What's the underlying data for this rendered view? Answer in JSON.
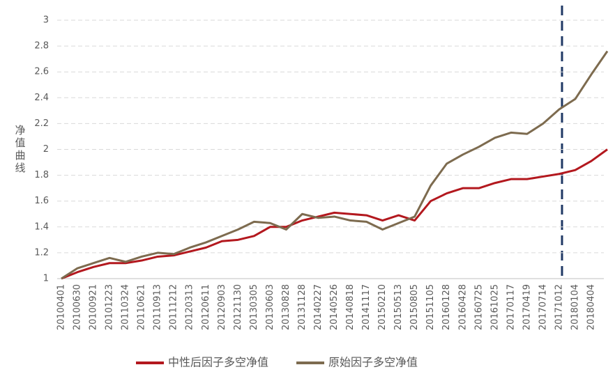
{
  "chart_data": {
    "type": "line",
    "y_label": "净值曲线",
    "categories": [
      "20100401",
      "20100630",
      "20100921",
      "20101223",
      "20110324",
      "20110621",
      "20110913",
      "20111212",
      "20120313",
      "20120611",
      "20120903",
      "20121130",
      "20130305",
      "20130603",
      "20130828",
      "20131128",
      "20140227",
      "20140526",
      "20140818",
      "20141117",
      "20150210",
      "20150513",
      "20150805",
      "20151105",
      "20160128",
      "20160428",
      "20160725",
      "20161025",
      "20170117",
      "20170419",
      "20170714",
      "20171012",
      "20180104",
      "20180404",
      null
    ],
    "series": [
      {
        "name": "中性后因子多空净值",
        "color": "#b3181e",
        "values": [
          1.0,
          1.05,
          1.09,
          1.12,
          1.12,
          1.14,
          1.17,
          1.18,
          1.21,
          1.24,
          1.29,
          1.3,
          1.33,
          1.4,
          1.4,
          1.45,
          1.48,
          1.51,
          1.5,
          1.49,
          1.45,
          1.49,
          1.45,
          1.6,
          1.66,
          1.7,
          1.7,
          1.74,
          1.77,
          1.77,
          1.79,
          1.81,
          1.84,
          1.91,
          2.0
        ]
      },
      {
        "name": "原始因子多空净值",
        "color": "#7d6b4f",
        "values": [
          1.0,
          1.08,
          1.12,
          1.16,
          1.13,
          1.17,
          1.2,
          1.19,
          1.24,
          1.28,
          1.33,
          1.38,
          1.44,
          1.43,
          1.38,
          1.5,
          1.47,
          1.48,
          1.45,
          1.44,
          1.38,
          1.43,
          1.48,
          1.72,
          1.89,
          1.96,
          2.02,
          2.09,
          2.13,
          2.12,
          2.2,
          2.31,
          2.39,
          2.58,
          2.76
        ]
      }
    ],
    "ylim": [
      1,
      3
    ],
    "yticks": [
      1,
      1.2,
      1.4,
      1.6,
      1.8,
      2,
      2.2,
      2.4,
      2.6,
      2.8,
      3
    ],
    "grid": true,
    "legend": "bottom"
  }
}
